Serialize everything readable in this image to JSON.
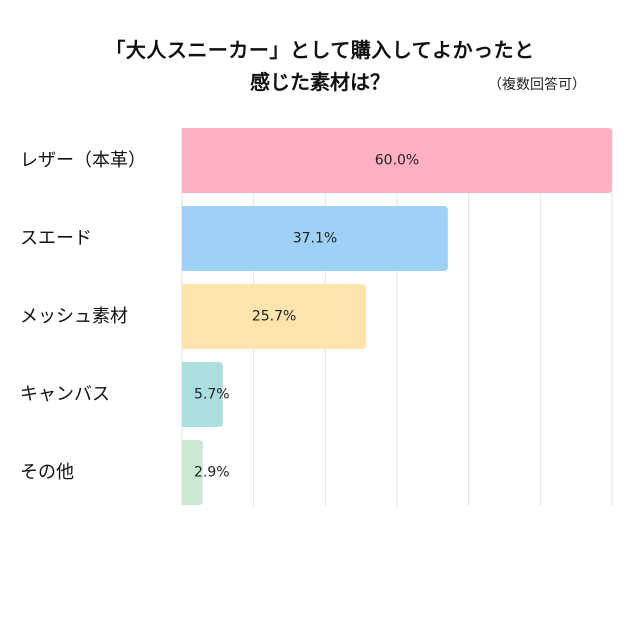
{
  "chart_data": {
    "type": "bar",
    "orientation": "horizontal",
    "title": "「大人スニーカー」として購入してよかったと",
    "title_line2": "感じた素材は？",
    "subtitle": "（複数回答可）",
    "categories": [
      "レザー（本革）",
      "スエード",
      "メッシュ素材",
      "キャンバス",
      "その他"
    ],
    "values": [
      60.0,
      37.1,
      25.7,
      5.7,
      2.9
    ],
    "data_labels": [
      "60.0%",
      "37.1%",
      "25.7%",
      "5.7%",
      "2.9%"
    ],
    "colors": [
      "#ffb0c2",
      "#9fd1f6",
      "#fde4ad",
      "#abdfdf",
      "#cae9d0"
    ],
    "xlim": [
      0,
      60
    ],
    "grid": true,
    "xlabel": "",
    "ylabel": ""
  }
}
